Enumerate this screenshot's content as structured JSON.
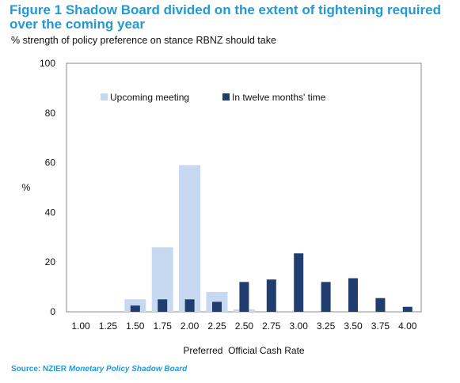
{
  "title": "Figure 1 Shadow Board divided on the extent of tightening required over the coming year",
  "subtitle": "% strength of policy preference on stance RBNZ should take",
  "source": {
    "prefix": "Source: NZIER ",
    "italic": "Monetary Policy Shadow Board"
  },
  "colors": {
    "series_1": "#c6d9f0",
    "series_2": "#1f3e6f"
  },
  "chart_data": {
    "type": "bar",
    "title": "Figure 1 Shadow Board divided on the extent of tightening required over the coming year",
    "subtitle": "% strength of policy preference on stance RBNZ should take",
    "xlabel": "Preferred  Official Cash Rate",
    "ylabel": "%",
    "ylim": [
      0,
      100
    ],
    "yticks": [
      "0",
      "20",
      "40",
      "60",
      "80",
      "100"
    ],
    "categories": [
      "1.00",
      "1.25",
      "1.50",
      "1.75",
      "2.00",
      "2.25",
      "2.50",
      "2.75",
      "3.00",
      "3.25",
      "3.50",
      "3.75",
      "4.00"
    ],
    "series": [
      {
        "name": "Upcoming meeting",
        "values": [
          0,
          0,
          5,
          26,
          59,
          8,
          1,
          0,
          0,
          0,
          0,
          0,
          0
        ]
      },
      {
        "name": "In twelve months' time",
        "values": [
          0,
          0,
          2.5,
          5,
          5,
          4,
          12,
          13,
          23.5,
          12,
          13.5,
          5.5,
          2
        ]
      }
    ],
    "grid": false,
    "legend_position": "top"
  }
}
